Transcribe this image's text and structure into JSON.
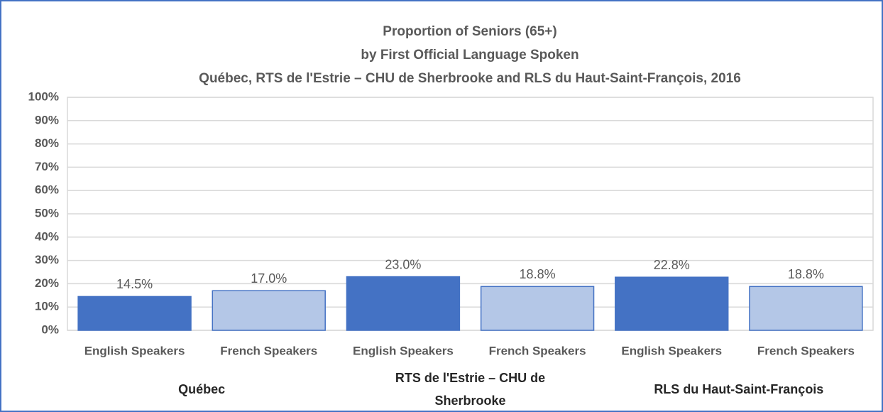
{
  "chart_data": {
    "type": "bar",
    "title": [
      "Proportion of Seniors (65+)",
      "by First Official Language Spoken",
      "Québec, RTS de l'Estrie – CHU de Sherbrooke and RLS du Haut-Saint-François,  2016"
    ],
    "categories": [
      "English Speakers",
      "French Speakers",
      "English Speakers",
      "French Speakers",
      "English Speakers",
      "French Speakers"
    ],
    "groups": [
      "Québec",
      "RTS de l'Estrie – CHU de Sherbrooke",
      "RLS du Haut-Saint-François"
    ],
    "values": [
      14.5,
      17.0,
      23.0,
      18.8,
      22.8,
      18.8
    ],
    "value_labels": [
      "14.5%",
      "17.0%",
      "23.0%",
      "18.8%",
      "22.8%",
      "18.8%"
    ],
    "colors": [
      "#4472c4",
      "#b4c7e7",
      "#4472c4",
      "#b4c7e7",
      "#4472c4",
      "#b4c7e7"
    ],
    "ylim": [
      0,
      100
    ],
    "yticks": [
      {
        "value": 0,
        "label": "0%"
      },
      {
        "value": 10,
        "label": "10%"
      },
      {
        "value": 20,
        "label": "20%"
      },
      {
        "value": 30,
        "label": "30%"
      },
      {
        "value": 40,
        "label": "40%"
      },
      {
        "value": 50,
        "label": "50%"
      },
      {
        "value": 60,
        "label": "60%"
      },
      {
        "value": 70,
        "label": "70%"
      },
      {
        "value": 80,
        "label": "80%"
      },
      {
        "value": 90,
        "label": "90%"
      },
      {
        "value": 100,
        "label": "100%"
      }
    ],
    "grid": true
  }
}
